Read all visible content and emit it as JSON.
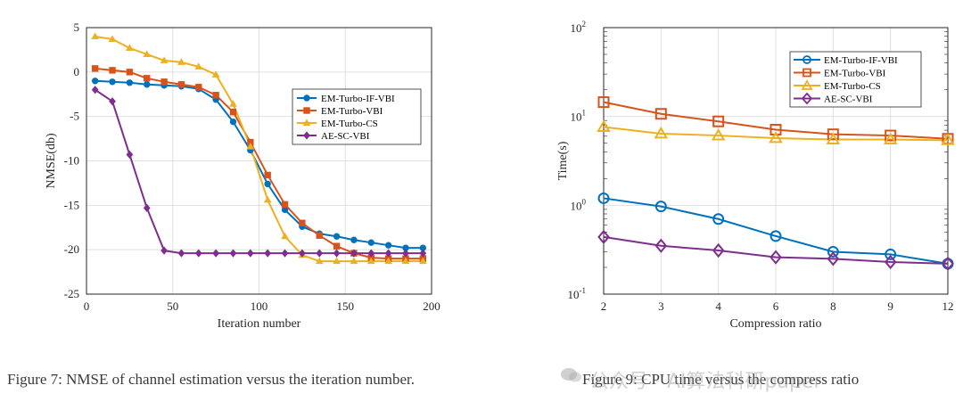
{
  "colors": {
    "blue": "#0072BD",
    "orange": "#D95319",
    "yellow": "#EDB120",
    "purple": "#7E2F8E",
    "axis": "#262626",
    "grid": "#dfdfdf"
  },
  "captions": {
    "left": "Figure 7: NMSE of channel estimation versus the iteration number.",
    "right": "Figure 9: CPU time versus the compress ratio"
  },
  "watermark": "公众号 · AI算法科研paper",
  "chart_data": [
    {
      "type": "line",
      "xlabel": "Iteration number",
      "ylabel": "NMSE(db)",
      "xlim": [
        0,
        200
      ],
      "ylim": [
        -25,
        5
      ],
      "xticks": [
        "0",
        "50",
        "100",
        "150",
        "200"
      ],
      "yticks": [
        "5",
        "0",
        "-5",
        "-10",
        "-15",
        "-20",
        "-25"
      ],
      "grid": true,
      "legend_position": "middle-right",
      "x": [
        5,
        15,
        25,
        35,
        45,
        55,
        65,
        75,
        85,
        95,
        105,
        115,
        125,
        135,
        145,
        155,
        165,
        175,
        185,
        195
      ],
      "series": [
        {
          "name": "EM-Turbo-IF-VBI",
          "marker": "circle",
          "color": "#0072BD",
          "values": [
            -1.0,
            -1.1,
            -1.2,
            -1.4,
            -1.5,
            -1.6,
            -1.9,
            -3.1,
            -5.6,
            -8.8,
            -12.6,
            -15.5,
            -17.4,
            -18.2,
            -18.5,
            -18.9,
            -19.2,
            -19.5,
            -19.8,
            -19.8
          ]
        },
        {
          "name": "EM-Turbo-VBI",
          "marker": "square",
          "color": "#D95319",
          "values": [
            0.4,
            0.2,
            0.0,
            -0.7,
            -1.1,
            -1.4,
            -1.7,
            -2.6,
            -4.5,
            -7.9,
            -11.6,
            -14.9,
            -17.0,
            -18.4,
            -19.6,
            -20.4,
            -20.9,
            -21.0,
            -21.0,
            -21.0
          ]
        },
        {
          "name": "EM-Turbo-CS",
          "marker": "triangle",
          "color": "#EDB120",
          "values": [
            4.0,
            3.7,
            2.7,
            2.0,
            1.3,
            1.1,
            0.6,
            -0.3,
            -3.6,
            -8.4,
            -14.4,
            -18.5,
            -20.6,
            -21.3,
            -21.3,
            -21.3,
            -21.3,
            -21.3,
            -21.3,
            -21.3
          ]
        },
        {
          "name": "AE-SC-VBI",
          "marker": "diamond",
          "color": "#7E2F8E",
          "values": [
            -2.0,
            -3.3,
            -9.3,
            -15.3,
            -20.1,
            -20.4,
            -20.4,
            -20.4,
            -20.4,
            -20.4,
            -20.4,
            -20.4,
            -20.4,
            -20.4,
            -20.4,
            -20.4,
            -20.4,
            -20.4,
            -20.4,
            -20.4
          ]
        }
      ]
    },
    {
      "type": "line",
      "xlabel": "Compression ratio",
      "ylabel": "Time(s)",
      "yscale": "log",
      "ylim": [
        0.1,
        100
      ],
      "categories": [
        "2",
        "3",
        "4",
        "6",
        "8",
        "9",
        "12"
      ],
      "ytick_base": "10",
      "ytick_exponents": [
        "-1",
        "0",
        "1",
        "2"
      ],
      "grid": true,
      "legend_position": "top-right",
      "series": [
        {
          "name": "EM-Turbo-IF-VBI",
          "marker": "circle",
          "color": "#0072BD",
          "values": [
            1.2,
            0.97,
            0.7,
            0.45,
            0.3,
            0.28,
            0.22
          ]
        },
        {
          "name": "EM-Turbo-VBI",
          "marker": "square",
          "color": "#D95319",
          "values": [
            14.5,
            10.7,
            8.8,
            7.1,
            6.3,
            6.1,
            5.6
          ]
        },
        {
          "name": "EM-Turbo-CS",
          "marker": "triangle",
          "color": "#EDB120",
          "values": [
            7.6,
            6.4,
            6.1,
            5.7,
            5.5,
            5.5,
            5.4
          ]
        },
        {
          "name": "AE-SC-VBI",
          "marker": "diamond",
          "color": "#7E2F8E",
          "values": [
            0.44,
            0.35,
            0.31,
            0.26,
            0.25,
            0.23,
            0.22
          ]
        }
      ]
    }
  ]
}
